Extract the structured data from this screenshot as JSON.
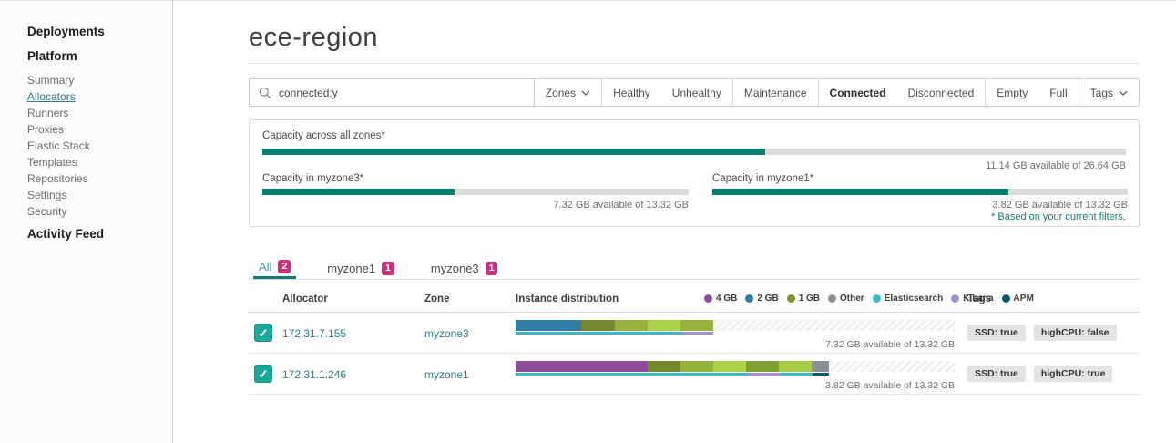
{
  "page": {
    "title": "ece-region"
  },
  "sidebar": {
    "deployments_label": "Deployments",
    "platform_label": "Platform",
    "platform_items": [
      {
        "label": "Summary",
        "active": false
      },
      {
        "label": "Allocators",
        "active": true
      },
      {
        "label": "Runners",
        "active": false
      },
      {
        "label": "Proxies",
        "active": false
      },
      {
        "label": "Elastic Stack",
        "active": false
      },
      {
        "label": "Templates",
        "active": false
      },
      {
        "label": "Repositories",
        "active": false
      },
      {
        "label": "Settings",
        "active": false
      },
      {
        "label": "Security",
        "active": false
      }
    ],
    "activity_feed_label": "Activity Feed"
  },
  "search": {
    "value": "connected:y"
  },
  "filters": {
    "groups": [
      {
        "buttons": [
          {
            "label": "Zones",
            "dropdown": true,
            "active": false
          }
        ]
      },
      {
        "buttons": [
          {
            "label": "Healthy",
            "active": false
          },
          {
            "label": "Unhealthy",
            "active": false
          }
        ]
      },
      {
        "buttons": [
          {
            "label": "Maintenance",
            "active": false
          }
        ]
      },
      {
        "buttons": [
          {
            "label": "Connected",
            "active": true
          },
          {
            "label": "Disconnected",
            "active": false
          }
        ]
      },
      {
        "buttons": [
          {
            "label": "Empty",
            "active": false
          },
          {
            "label": "Full",
            "active": false
          }
        ]
      },
      {
        "buttons": [
          {
            "label": "Tags",
            "dropdown": true,
            "active": false
          }
        ]
      }
    ]
  },
  "capacity": {
    "bar_color": "#087E6F",
    "track_color": "#DADADA",
    "all_zones": {
      "label": "Capacity across all zones*",
      "used_percent": 58.2,
      "available_text": "11.14 GB available of 26.64 GB"
    },
    "zone_left": {
      "label": "Capacity in myzone3*",
      "used_percent": 45.0,
      "available_text": "7.32 GB available of 13.32 GB"
    },
    "zone_right": {
      "label": "Capacity in myzone1*",
      "used_percent": 71.3,
      "available_text": "3.82 GB available of 13.32 GB"
    },
    "footnote": "* Based on your current filters."
  },
  "tabs": [
    {
      "label": "All",
      "count": "2",
      "active": true
    },
    {
      "label": "myzone1",
      "count": "1",
      "active": false
    },
    {
      "label": "myzone3",
      "count": "1",
      "active": false
    }
  ],
  "table": {
    "headers": {
      "allocator": "Allocator",
      "zone": "Zone",
      "instance_distribution": "Instance distribution",
      "tags": "Tags"
    },
    "legend": [
      {
        "label": "4 GB",
        "color": "#8D4D9B"
      },
      {
        "label": "2 GB",
        "color": "#2F7DA7"
      },
      {
        "label": "1 GB",
        "color": "#7D9230"
      },
      {
        "label": "Other",
        "color": "#8A9094"
      },
      {
        "label": "Elasticsearch",
        "color": "#3DB7CA"
      },
      {
        "label": "Kibana",
        "color": "#A392CB"
      },
      {
        "label": "APM",
        "color": "#075A66"
      }
    ],
    "rows": [
      {
        "checked": true,
        "allocator": "172.31.7.155",
        "zone": "myzone3",
        "fill_percent": 45,
        "available_text": "7.32 GB available of 13.32 GB",
        "segments": [
          {
            "size": "2 GB",
            "width": 33.4,
            "color": "#2F7DA7"
          },
          {
            "size": "1 GB",
            "width": 16.7,
            "color": "#75892C"
          },
          {
            "size": "1 GB",
            "width": 16.6,
            "color": "#96B23A"
          },
          {
            "size": "1 GB",
            "width": 16.7,
            "color": "#ABD347"
          },
          {
            "size": "1 GB",
            "width": 16.6,
            "color": "#96B23A"
          }
        ],
        "strip": [
          {
            "kind": "Elasticsearch",
            "width": 85,
            "color": "#3DB7CA"
          },
          {
            "kind": "Kibana",
            "width": 15,
            "color": "#A392CB"
          }
        ],
        "tags": [
          "SSD: true",
          "highCPU: false"
        ]
      },
      {
        "checked": true,
        "allocator": "172.31.1.246",
        "zone": "myzone1",
        "fill_percent": 71.3,
        "available_text": "3.82 GB available of 13.32 GB",
        "segments": [
          {
            "size": "4 GB",
            "width": 42.1,
            "color": "#8D4D9B"
          },
          {
            "size": "1 GB",
            "width": 10.5,
            "color": "#75892C"
          },
          {
            "size": "1 GB",
            "width": 10.5,
            "color": "#96B23A"
          },
          {
            "size": "1 GB",
            "width": 10.5,
            "color": "#ABD347"
          },
          {
            "size": "1 GB",
            "width": 10.5,
            "color": "#7FA032"
          },
          {
            "size": "1 GB",
            "width": 10.5,
            "color": "#A6CD45"
          },
          {
            "size": "Other",
            "width": 5.4,
            "color": "#8A9094"
          }
        ],
        "strip": [
          {
            "kind": "Elasticsearch",
            "width": 74.5,
            "color": "#3DB7CA"
          },
          {
            "kind": "Kibana",
            "width": 9.5,
            "color": "#A392CB"
          },
          {
            "kind": "Elasticsearch",
            "width": 11,
            "color": "#3DB7CA"
          },
          {
            "kind": "APM",
            "width": 5,
            "color": "#075A66"
          }
        ],
        "tags": [
          "SSD: true",
          "highCPU: true"
        ]
      }
    ]
  }
}
